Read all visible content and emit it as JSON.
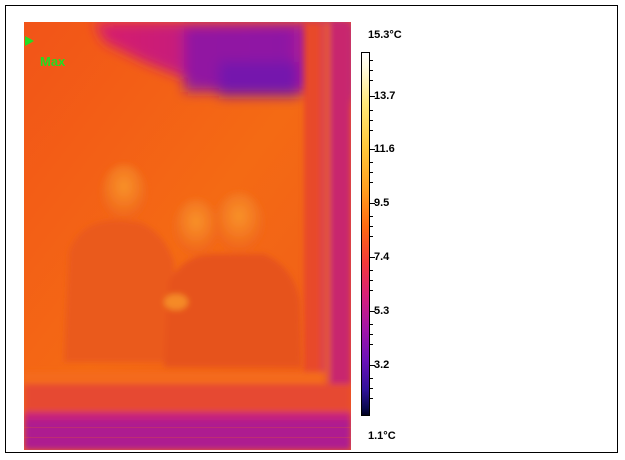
{
  "image": {
    "marker_label": "Max"
  },
  "scale": {
    "max_label": "15.3°C",
    "min_label": "1.1°C",
    "ticks": [
      "13.7",
      "11.6",
      "9.5",
      "7.4",
      "5.3",
      "3.2"
    ],
    "max_value": 15.3,
    "min_value": 1.1,
    "gradient_colors": [
      "#ffffff",
      "#ffe97a",
      "#ff9e1f",
      "#f43a3a",
      "#a516a8",
      "#30129a",
      "#000020"
    ]
  }
}
